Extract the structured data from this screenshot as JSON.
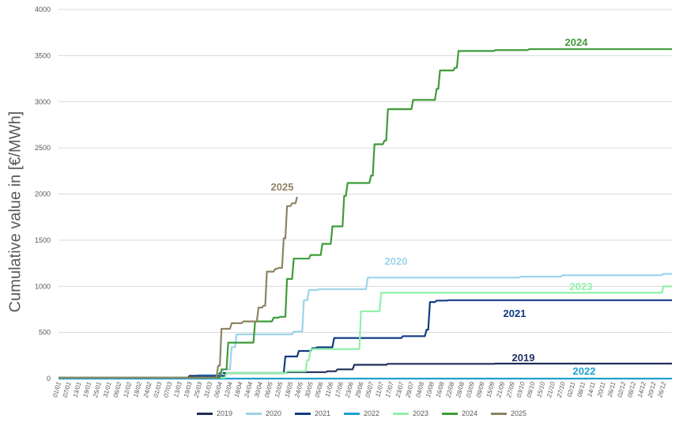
{
  "chart_data": {
    "type": "line",
    "ylabel": "Cumulative value in [€/MWh]",
    "ylim": [
      0,
      4000
    ],
    "yticks": [
      0,
      500,
      1000,
      1500,
      2000,
      2500,
      3000,
      3500,
      4000
    ],
    "xlim_days": [
      1,
      366
    ],
    "xticks": [
      "01/01",
      "07/01",
      "13/01",
      "19/01",
      "25/01",
      "31/01",
      "06/02",
      "12/02",
      "18/02",
      "24/02",
      "01/03",
      "07/03",
      "13/03",
      "19/03",
      "25/03",
      "31/03",
      "06/04",
      "12/04",
      "18/04",
      "24/04",
      "30/04",
      "06/05",
      "12/05",
      "18/05",
      "24/05",
      "30/05",
      "05/06",
      "11/06",
      "17/06",
      "23/06",
      "29/06",
      "05/07",
      "11/07",
      "17/07",
      "23/07",
      "29/07",
      "04/08",
      "10/08",
      "16/08",
      "22/08",
      "28/08",
      "03/09",
      "09/09",
      "15/09",
      "21/09",
      "27/09",
      "03/10",
      "09/10",
      "15/10",
      "21/10",
      "27/10",
      "02/11",
      "08/11",
      "14/11",
      "20/11",
      "26/11",
      "02/12",
      "08/12",
      "14/12",
      "20/12",
      "26/12"
    ],
    "grid": true,
    "legend_position": "bottom",
    "series": [
      {
        "name": "2019",
        "color": "#1f2f5c",
        "label": "2019",
        "label_color": "#1f2f5c",
        "x": [
          1,
          78,
          79,
          96,
          97,
          136,
          137,
          160,
          161,
          166,
          167,
          176,
          177,
          196,
          197,
          260,
          261,
          366
        ],
        "y": [
          10,
          10,
          30,
          30,
          60,
          60,
          70,
          70,
          80,
          80,
          100,
          100,
          150,
          150,
          160,
          160,
          163,
          163
        ]
      },
      {
        "name": "2020",
        "color": "#9dd3ea",
        "label": "2020",
        "label_color": "#9dd3ea",
        "x": [
          1,
          83,
          84,
          98,
          99,
          103,
          104,
          106,
          107,
          140,
          141,
          146,
          147,
          149,
          150,
          155,
          156,
          184,
          185,
          275,
          276,
          300,
          301,
          360,
          361,
          366
        ],
        "y": [
          10,
          10,
          40,
          40,
          100,
          100,
          340,
          340,
          480,
          480,
          510,
          510,
          850,
          850,
          960,
          960,
          970,
          970,
          1095,
          1095,
          1105,
          1105,
          1120,
          1120,
          1135,
          1135
        ]
      },
      {
        "name": "2021",
        "color": "#123b84",
        "label": "2021",
        "label_color": "#123b84",
        "x": [
          1,
          81,
          82,
          100,
          101,
          118,
          119,
          135,
          136,
          143,
          144,
          151,
          152,
          154,
          155,
          164,
          165,
          205,
          206,
          219,
          220,
          221,
          222,
          225,
          226,
          232,
          233,
          366
        ],
        "y": [
          10,
          10,
          30,
          30,
          60,
          60,
          60,
          60,
          240,
          240,
          300,
          300,
          330,
          330,
          340,
          340,
          440,
          440,
          460,
          460,
          530,
          530,
          830,
          830,
          845,
          845,
          850,
          850
        ]
      },
      {
        "name": "2022",
        "color": "#1fa0d6",
        "label": "2022",
        "label_color": "#1fa0d6",
        "x": [
          1,
          366
        ],
        "y": [
          0,
          0
        ]
      },
      {
        "name": "2023",
        "color": "#8ff1a8",
        "label": "2023",
        "label_color": "#8ff1a8",
        "x": [
          1,
          100,
          101,
          136,
          137,
          148,
          149,
          150,
          151,
          180,
          181,
          192,
          193,
          360,
          361,
          366
        ],
        "y": [
          10,
          10,
          60,
          60,
          80,
          80,
          200,
          200,
          320,
          320,
          730,
          730,
          930,
          930,
          1000,
          1000
        ]
      },
      {
        "name": "2024",
        "color": "#3f9b3a",
        "label": "2024",
        "label_color": "#3f9b3a",
        "x": [
          1,
          97,
          98,
          101,
          102,
          117,
          118,
          128,
          129,
          132,
          133,
          136,
          137,
          140,
          141,
          150,
          151,
          157,
          158,
          163,
          164,
          170,
          171,
          172,
          173,
          186,
          187,
          188,
          189,
          194,
          195,
          196,
          197,
          211,
          212,
          225,
          226,
          227,
          228,
          236,
          237,
          238,
          239,
          260,
          261,
          280,
          281,
          366
        ],
        "y": [
          10,
          10,
          100,
          100,
          390,
          390,
          620,
          620,
          660,
          660,
          670,
          670,
          1080,
          1080,
          1300,
          1300,
          1340,
          1340,
          1460,
          1460,
          1650,
          1650,
          1980,
          1980,
          2120,
          2120,
          2200,
          2200,
          2540,
          2540,
          2580,
          2580,
          2920,
          2920,
          3020,
          3020,
          3140,
          3140,
          3340,
          3340,
          3370,
          3370,
          3550,
          3550,
          3560,
          3560,
          3570,
          3570
        ]
      },
      {
        "name": "2025",
        "color": "#8c8463",
        "label": "2025",
        "label_color": "#8c8463",
        "x": [
          1,
          95,
          96,
          97,
          98,
          103,
          104,
          110,
          111,
          119,
          120,
          122,
          123,
          124,
          125,
          129,
          130,
          131,
          132,
          134,
          135,
          136,
          137,
          139,
          140,
          142,
          143
        ],
        "y": [
          10,
          10,
          140,
          140,
          540,
          540,
          600,
          600,
          620,
          620,
          770,
          770,
          790,
          790,
          1160,
          1160,
          1190,
          1190,
          1200,
          1200,
          1520,
          1520,
          1870,
          1870,
          1900,
          1900,
          1970
        ]
      }
    ]
  }
}
